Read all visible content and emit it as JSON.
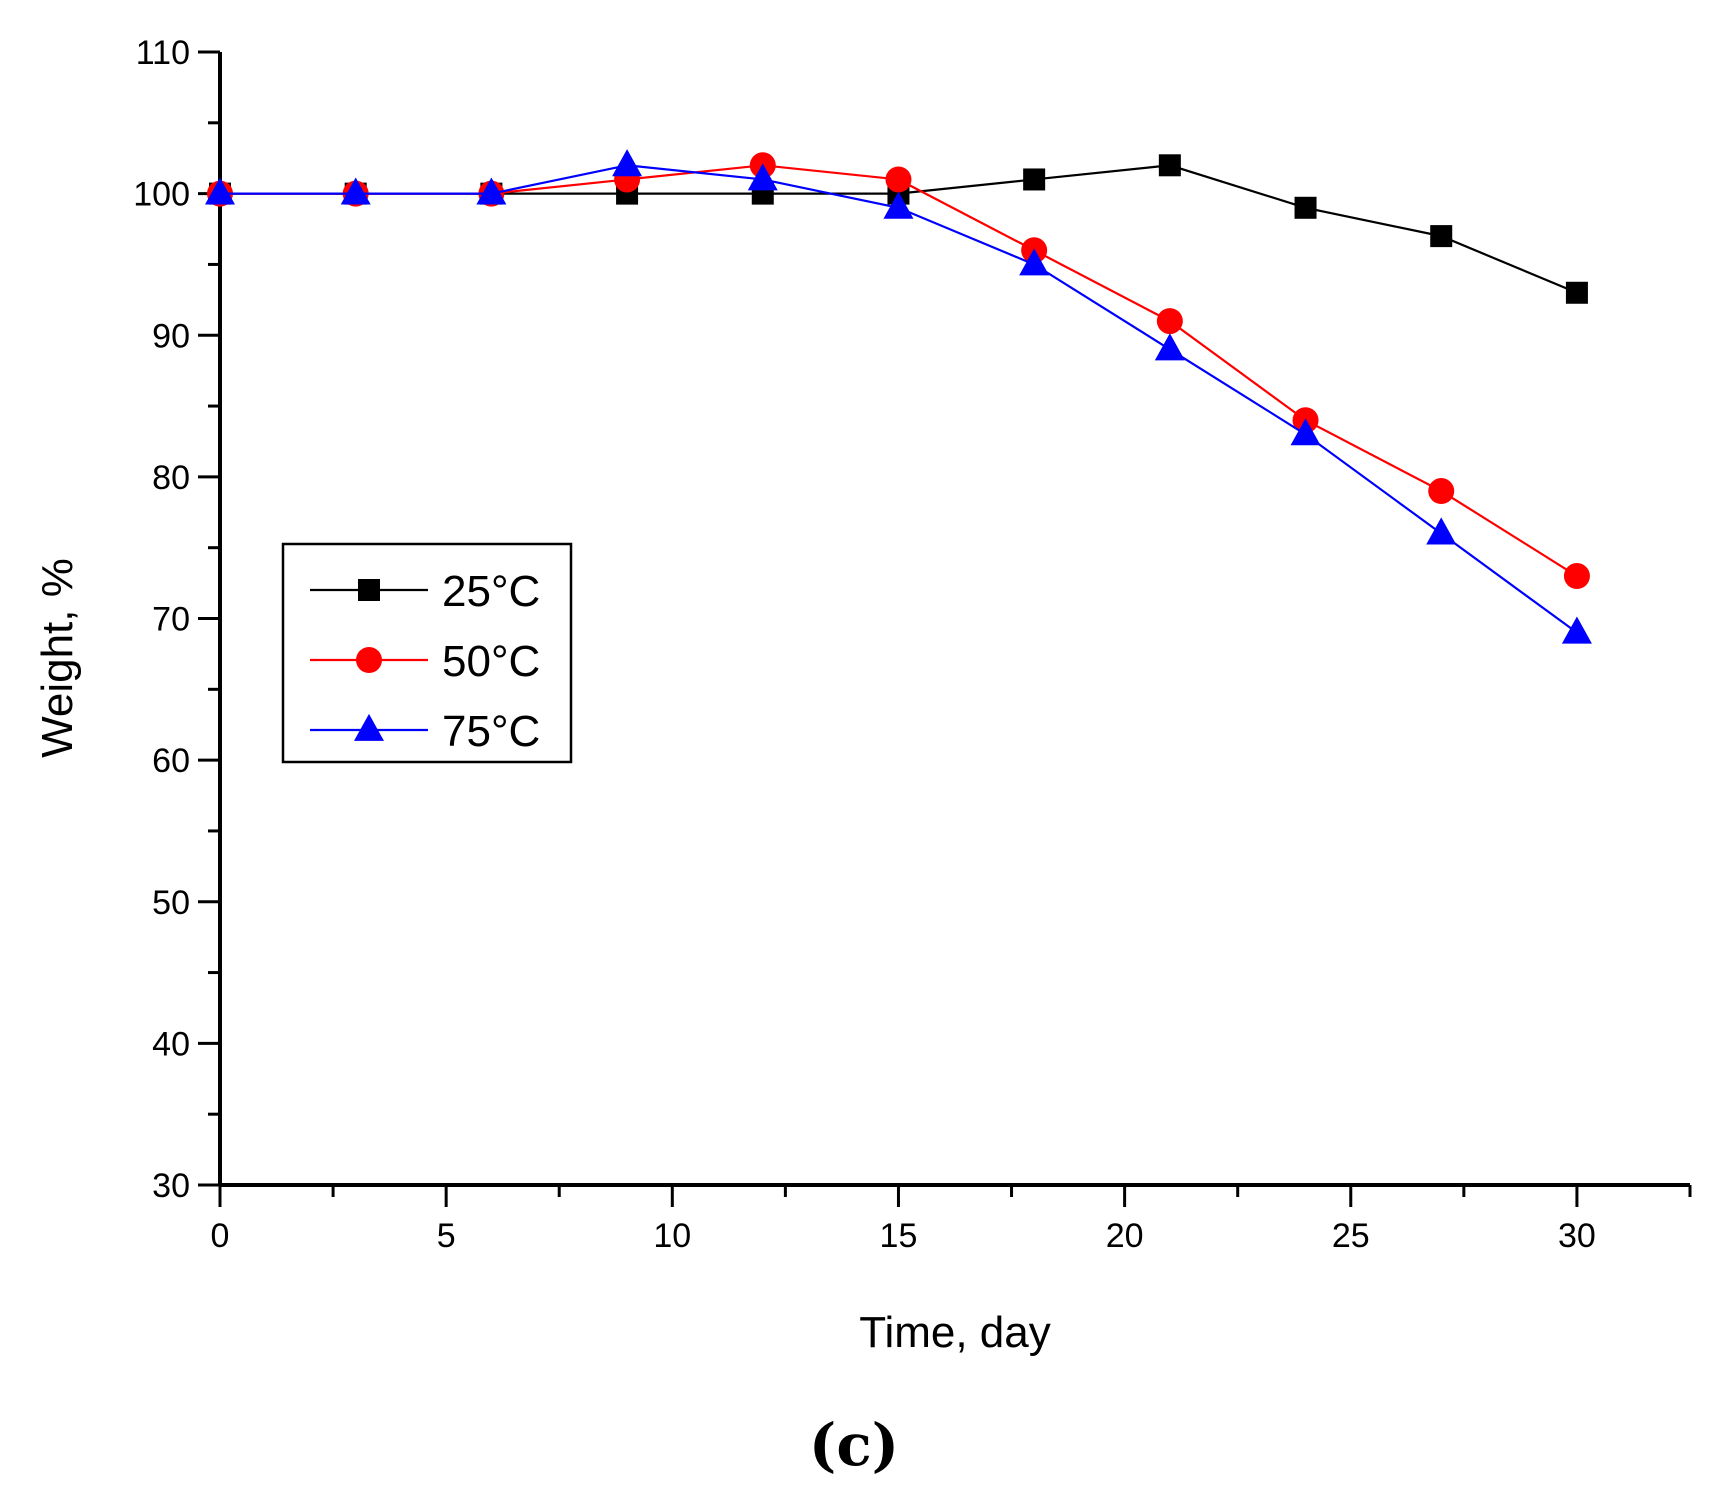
{
  "chart_data": {
    "type": "line",
    "title": "",
    "xlabel": "Time, day",
    "ylabel": "Weight, %",
    "panel_label": "(c)",
    "xlim": [
      0,
      32.5
    ],
    "ylim": [
      30,
      110
    ],
    "xticks": [
      0,
      5,
      10,
      15,
      20,
      25,
      30
    ],
    "xtick_labels": [
      "0",
      "5",
      "10",
      "15",
      "20",
      "25",
      "30"
    ],
    "yticks": [
      30,
      40,
      50,
      60,
      70,
      80,
      90,
      100,
      110
    ],
    "ytick_labels": [
      "30",
      "40",
      "50",
      "60",
      "70",
      "80",
      "90",
      "100",
      "110"
    ],
    "legend_position": "center-left",
    "grid": false,
    "x": [
      0,
      3,
      6,
      9,
      12,
      15,
      18,
      21,
      24,
      27,
      30
    ],
    "series": [
      {
        "name": "25°C",
        "color": "#000000",
        "marker": "square",
        "values": [
          100,
          100,
          100,
          100,
          100,
          100,
          101,
          102,
          99,
          97,
          93
        ]
      },
      {
        "name": "50°C",
        "color": "#ff0000",
        "marker": "circle",
        "values": [
          100,
          100,
          100,
          101,
          102,
          101,
          96,
          91,
          84,
          79,
          73
        ]
      },
      {
        "name": "75°C",
        "color": "#0000ff",
        "marker": "triangle",
        "values": [
          100,
          100,
          100,
          102,
          101,
          99,
          95,
          89,
          83,
          76,
          69
        ]
      }
    ]
  }
}
